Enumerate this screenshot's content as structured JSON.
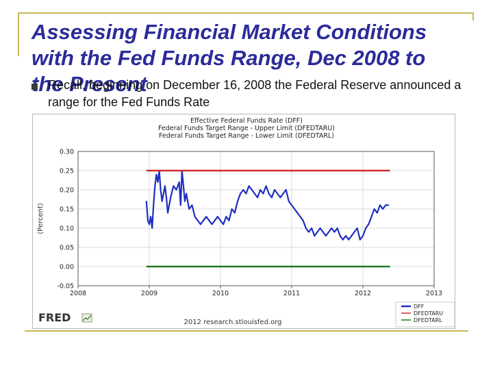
{
  "slide": {
    "title": "Assessing Financial Market Conditions with the Fed Funds Range, Dec 2008 to the Present",
    "bullet": "Recall, beginning on December 16, 2008 the Federal Reserve announced a range for the Fed Funds Rate",
    "accent_color": "#c8b75a",
    "title_color": "#2b2b9a"
  },
  "chart_data": {
    "type": "line",
    "title_lines": [
      "Effective Federal Funds Rate (DFF)",
      "Federal Funds Target Range - Upper Limit (DFEDTARU)",
      "Federal Funds Target Range - Lower Limit (DFEDTARL)"
    ],
    "ylabel": "(Percent)",
    "xlabel": "",
    "xlim": [
      2008,
      2013
    ],
    "ylim": [
      -0.05,
      0.3
    ],
    "x_ticks": [
      2008,
      2009,
      2010,
      2011,
      2012,
      2013
    ],
    "x_tick_labels": [
      "2008",
      "2009",
      "2010",
      "2011",
      "2012",
      "2013"
    ],
    "y_ticks": [
      -0.05,
      0.0,
      0.05,
      0.1,
      0.15,
      0.2,
      0.25,
      0.3
    ],
    "y_tick_labels": [
      "-0.05",
      "0.00",
      "0.05",
      "0.10",
      "0.15",
      "0.20",
      "0.25",
      "0.30"
    ],
    "grid": true,
    "legend_position": "bottom-right",
    "series": [
      {
        "name": "DFF",
        "color": "#1f2fbf",
        "x": [
          2008.96,
          2008.98,
          2009.0,
          2009.02,
          2009.04,
          2009.06,
          2009.08,
          2009.1,
          2009.12,
          2009.14,
          2009.16,
          2009.18,
          2009.2,
          2009.22,
          2009.24,
          2009.26,
          2009.3,
          2009.34,
          2009.38,
          2009.42,
          2009.44,
          2009.46,
          2009.48,
          2009.5,
          2009.52,
          2009.56,
          2009.6,
          2009.64,
          2009.68,
          2009.72,
          2009.76,
          2009.8,
          2009.84,
          2009.88,
          2009.92,
          2009.96,
          2010.0,
          2010.04,
          2010.08,
          2010.12,
          2010.16,
          2010.2,
          2010.24,
          2010.28,
          2010.32,
          2010.36,
          2010.4,
          2010.44,
          2010.48,
          2010.52,
          2010.56,
          2010.6,
          2010.64,
          2010.68,
          2010.72,
          2010.76,
          2010.8,
          2010.84,
          2010.88,
          2010.92,
          2010.96,
          2011.0,
          2011.04,
          2011.08,
          2011.12,
          2011.16,
          2011.2,
          2011.24,
          2011.28,
          2011.32,
          2011.36,
          2011.4,
          2011.44,
          2011.48,
          2011.52,
          2011.56,
          2011.6,
          2011.64,
          2011.68,
          2011.72,
          2011.76,
          2011.8,
          2011.84,
          2011.88,
          2011.92,
          2011.96,
          2012.0,
          2012.04,
          2012.08,
          2012.12,
          2012.16,
          2012.2,
          2012.24,
          2012.28,
          2012.32,
          2012.36
        ],
        "values": [
          0.17,
          0.12,
          0.11,
          0.13,
          0.1,
          0.16,
          0.21,
          0.24,
          0.22,
          0.25,
          0.2,
          0.17,
          0.19,
          0.21,
          0.18,
          0.14,
          0.18,
          0.21,
          0.2,
          0.22,
          0.16,
          0.25,
          0.21,
          0.17,
          0.19,
          0.15,
          0.16,
          0.13,
          0.12,
          0.11,
          0.12,
          0.13,
          0.12,
          0.11,
          0.12,
          0.13,
          0.12,
          0.11,
          0.13,
          0.12,
          0.15,
          0.14,
          0.17,
          0.19,
          0.2,
          0.19,
          0.21,
          0.2,
          0.19,
          0.18,
          0.2,
          0.19,
          0.21,
          0.19,
          0.18,
          0.2,
          0.19,
          0.18,
          0.19,
          0.2,
          0.17,
          0.16,
          0.15,
          0.14,
          0.13,
          0.12,
          0.1,
          0.09,
          0.1,
          0.08,
          0.09,
          0.1,
          0.09,
          0.08,
          0.09,
          0.1,
          0.09,
          0.1,
          0.08,
          0.07,
          0.08,
          0.07,
          0.08,
          0.09,
          0.1,
          0.07,
          0.08,
          0.1,
          0.11,
          0.13,
          0.15,
          0.14,
          0.16,
          0.15,
          0.16,
          0.16
        ]
      },
      {
        "name": "DFEDTARU",
        "color": "#d22b2b",
        "x": [
          2008.96,
          2012.38
        ],
        "values": [
          0.25,
          0.25
        ]
      },
      {
        "name": "DFEDTARL",
        "color": "#1e7a1e",
        "x": [
          2008.96,
          2012.38
        ],
        "values": [
          0.0,
          0.0
        ]
      }
    ],
    "source": "2012 research.stlouisfed.org",
    "brand": "FRED"
  }
}
